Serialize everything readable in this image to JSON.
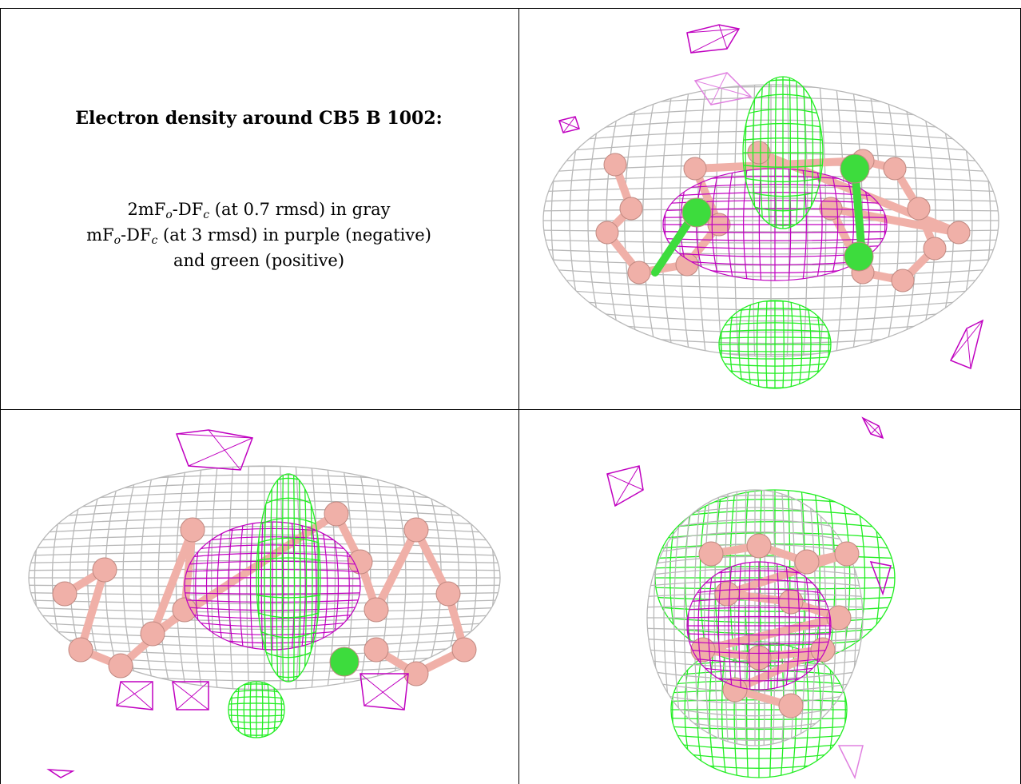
{
  "caption": {
    "title": "Electron density around CB5 B 1002:",
    "line1": {
      "pre": "2mF",
      "sub1": "o",
      "mid": "-DF",
      "sub2": "c",
      "post": " (at 0.7 rmsd) in gray"
    },
    "line2": {
      "pre": "mF",
      "sub1": "o",
      "mid": "-DF",
      "sub2": "c",
      "post": " (at 3 rmsd) in purple (negative)"
    },
    "line3": "and green (positive)"
  },
  "colors": {
    "gray_mesh": "#b8b8b8",
    "purple_mesh": "#c000c0",
    "light_purple_mesh": "#e080e0",
    "green_mesh": "#22ee22",
    "boron": "#f0b0a8",
    "chlorine": "#3ddc3d"
  },
  "panels": [
    {
      "view": "top-right"
    },
    {
      "view": "bottom-left"
    },
    {
      "view": "bottom-right"
    }
  ]
}
